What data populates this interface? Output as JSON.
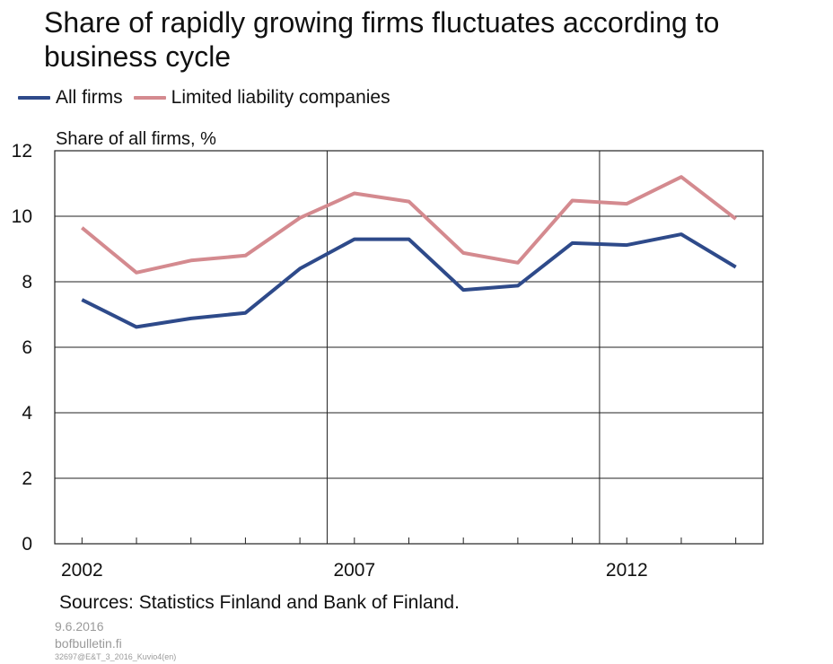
{
  "title": "Share of rapidly growing firms fluctuates according to business cycle",
  "legend": {
    "items": [
      {
        "label": "All firms",
        "color": "#2e4a8a"
      },
      {
        "label": "Limited liability companies",
        "color": "#d48a8f"
      }
    ]
  },
  "chart_data": {
    "type": "line",
    "ylabel": "Share of all firms, %",
    "ylim": [
      0,
      12
    ],
    "yticks": [
      0,
      2,
      4,
      6,
      8,
      10,
      12
    ],
    "xlim": [
      2001.5,
      2014.5
    ],
    "xtick_labels": [
      "2002",
      "2007",
      "2012"
    ],
    "x": [
      2002,
      2003,
      2004,
      2005,
      2006,
      2007,
      2008,
      2009,
      2010,
      2011,
      2012,
      2013,
      2014
    ],
    "grid": true,
    "legend_position": "top-left",
    "series": [
      {
        "name": "All firms",
        "color": "#2e4a8a",
        "values": [
          7.45,
          6.62,
          6.88,
          7.05,
          8.4,
          9.3,
          9.3,
          7.75,
          7.88,
          9.18,
          9.12,
          9.45,
          8.45
        ]
      },
      {
        "name": "Limited liability companies",
        "color": "#d48a8f",
        "values": [
          9.65,
          8.28,
          8.65,
          8.8,
          9.95,
          10.7,
          10.45,
          8.88,
          8.58,
          10.48,
          10.38,
          11.2,
          9.92
        ]
      }
    ]
  },
  "footer": {
    "source": "Sources: Statistics Finland and Bank of Finland.",
    "date": "9.6.2016",
    "site": "bofbulletin.fi",
    "code": "32697@E&T_3_2016_Kuvio4(en)"
  }
}
